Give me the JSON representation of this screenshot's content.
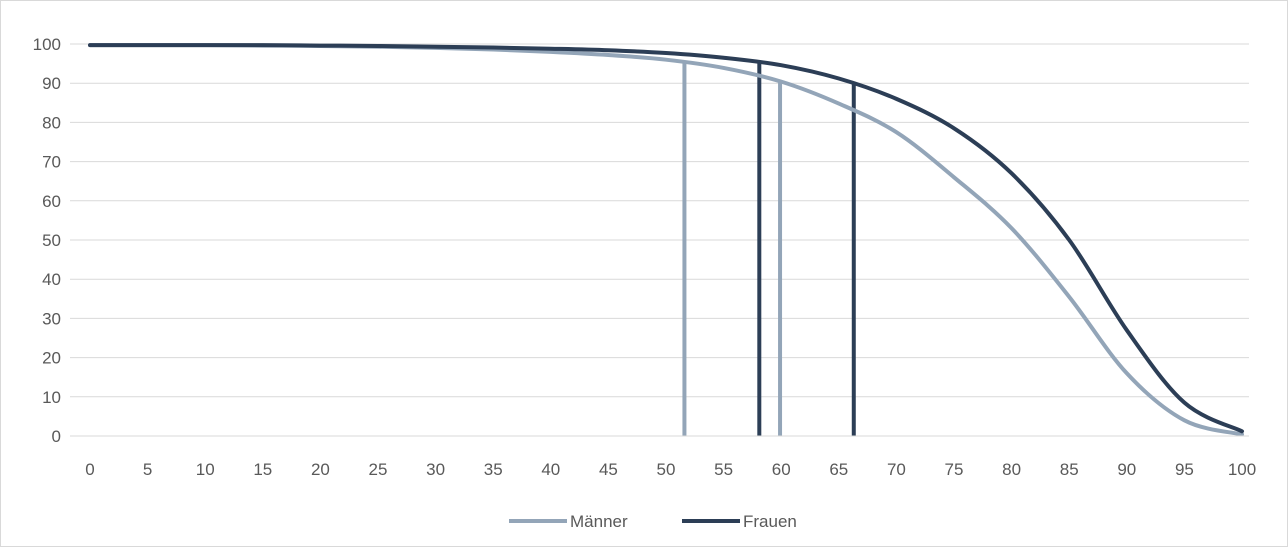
{
  "chart_data": {
    "type": "line",
    "title": "",
    "xlabel": "",
    "ylabel": "",
    "xlim": [
      0,
      100
    ],
    "ylim": [
      0,
      100
    ],
    "x_ticks": [
      0,
      5,
      10,
      15,
      20,
      25,
      30,
      35,
      40,
      45,
      50,
      55,
      60,
      65,
      70,
      75,
      80,
      85,
      90,
      95,
      100
    ],
    "y_ticks": [
      0,
      10,
      20,
      30,
      40,
      50,
      60,
      70,
      80,
      90,
      100
    ],
    "grid": "horizontal",
    "legend_position": "bottom",
    "x": [
      0,
      5,
      10,
      15,
      20,
      25,
      30,
      35,
      40,
      45,
      50,
      55,
      60,
      65,
      70,
      75,
      80,
      85,
      90,
      95,
      100
    ],
    "series": [
      {
        "name": "Männer",
        "color": "#93a5b8",
        "values": [
          99.7,
          99.7,
          99.7,
          99.6,
          99.5,
          99.3,
          99.0,
          98.6,
          98.0,
          97.2,
          96.0,
          93.9,
          90.4,
          84.8,
          77.5,
          66.0,
          53.0,
          35.5,
          16.0,
          4.0,
          0.4
        ]
      },
      {
        "name": "Frauen",
        "color": "#2c3e56",
        "values": [
          99.7,
          99.7,
          99.7,
          99.7,
          99.6,
          99.5,
          99.3,
          99.1,
          98.8,
          98.4,
          97.7,
          96.5,
          94.6,
          91.2,
          86.0,
          78.5,
          67.0,
          50.0,
          27.0,
          8.5,
          1.2
        ]
      }
    ],
    "vertical_markers": [
      {
        "series": "Männer",
        "x": 51.6,
        "y": 95.5
      },
      {
        "series": "Männer",
        "x": 59.9,
        "y": 90.5
      },
      {
        "series": "Frauen",
        "x": 58.1,
        "y": 95.5
      },
      {
        "series": "Frauen",
        "x": 66.3,
        "y": 90.3
      }
    ]
  }
}
